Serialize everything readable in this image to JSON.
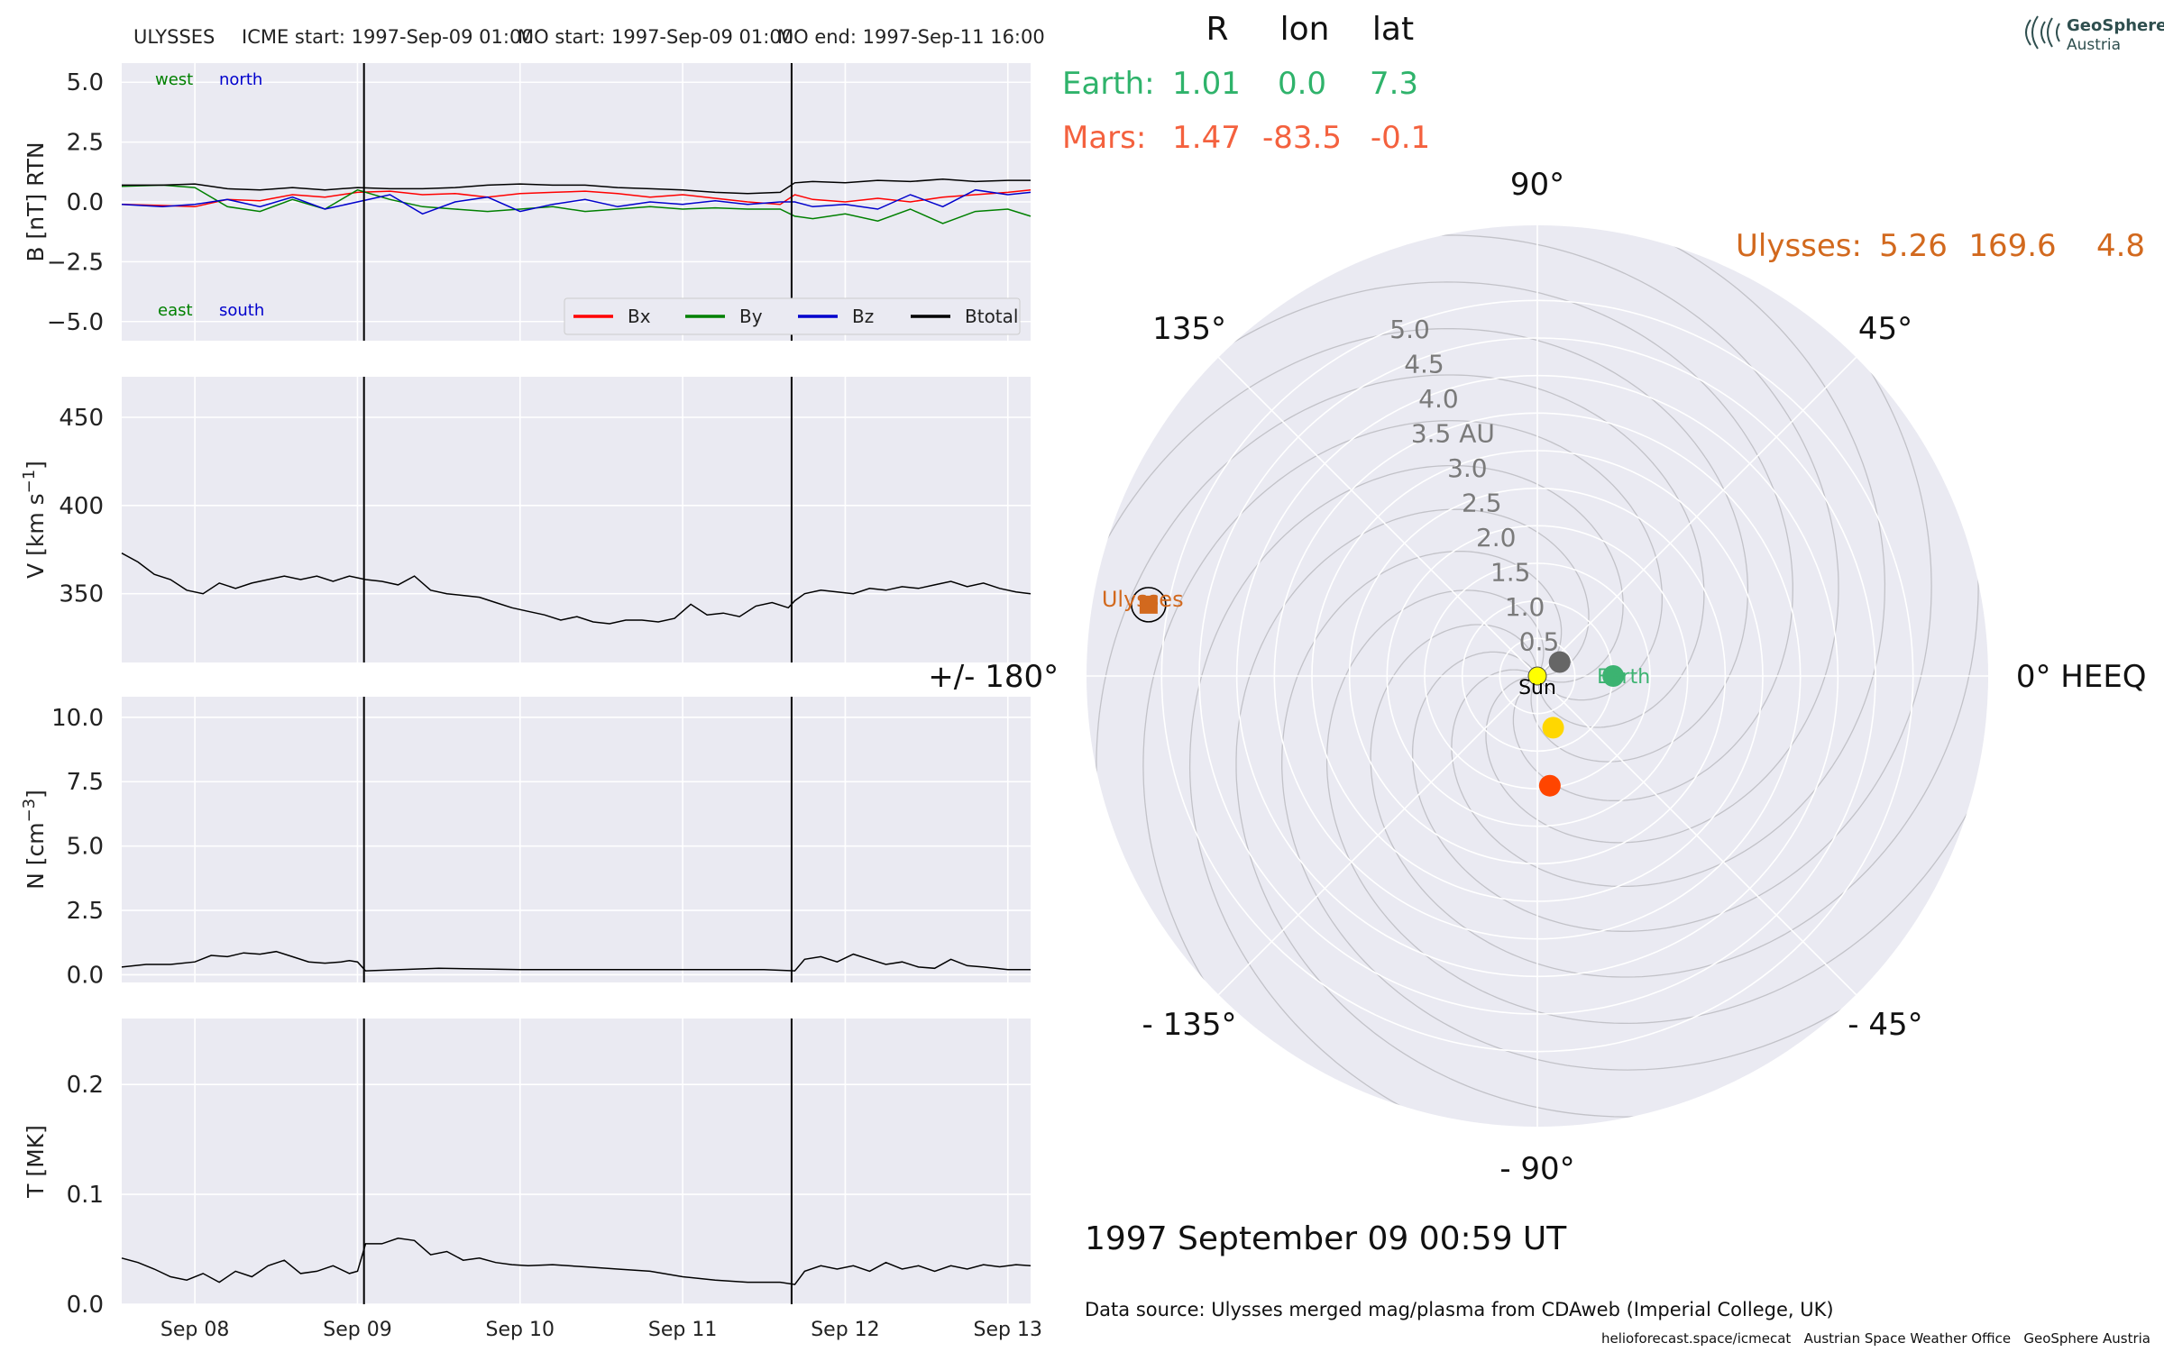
{
  "header": {
    "spacecraft": "ULYSSES",
    "icme_start": "ICME start: 1997-Sep-09 01:00",
    "mo_start": "MO start: 1997-Sep-09 01:00",
    "mo_end": "MO end: 1997-Sep-11 16:00"
  },
  "position_table": {
    "columns": [
      "R",
      "lon",
      "lat"
    ],
    "rows": [
      {
        "name": "Earth:",
        "R": "1.01",
        "lon": "0.0",
        "lat": "7.3",
        "color": "#2fb36b"
      },
      {
        "name": "Mars:",
        "R": "1.47",
        "lon": "-83.5",
        "lat": "-0.1",
        "color": "#f4613e"
      },
      {
        "name": "Ulysses:",
        "R": "5.26",
        "lon": "169.6",
        "lat": "4.8",
        "color": "#d2691e"
      }
    ]
  },
  "logo": {
    "line1": "GeoSphere",
    "line2": "Austria"
  },
  "timestamp": "1997 September 09  00:59 UT",
  "data_source": "Data source: Ulysses merged mag/plasma from CDAweb (Imperial College, UK)",
  "footer": "helioforecast.space/icmecat   Austrian Space Weather Office   GeoSphere Austria",
  "chart_data": [
    {
      "type": "line",
      "panel": "B",
      "ylabel": "B [nT] RTN",
      "ylim": [
        -5.8,
        5.8
      ],
      "yticks": [
        "5.0",
        "2.5",
        "0.0",
        "−2.5",
        "−5.0"
      ],
      "ytick_values": [
        5.0,
        2.5,
        0.0,
        -2.5,
        -5.0
      ],
      "annotations": {
        "west": "west",
        "north": "north",
        "east": "east",
        "south": "south"
      },
      "legend_position": "bottom-right",
      "series": [
        {
          "name": "Bx",
          "color": "#ff0000",
          "x": [
            7.55,
            7.8,
            8.0,
            8.2,
            8.4,
            8.6,
            8.8,
            9.0,
            9.2,
            9.4,
            9.6,
            9.8,
            10.0,
            10.2,
            10.4,
            10.6,
            10.8,
            11.0,
            11.2,
            11.4,
            11.6,
            11.69,
            11.8,
            12.0,
            12.2,
            12.4,
            12.6,
            12.8,
            13.0,
            13.14
          ],
          "y": [
            -0.1,
            -0.15,
            -0.2,
            0.1,
            0.05,
            0.3,
            0.2,
            0.4,
            0.45,
            0.3,
            0.35,
            0.2,
            0.35,
            0.4,
            0.45,
            0.35,
            0.2,
            0.3,
            0.15,
            0.0,
            -0.1,
            0.3,
            0.1,
            0.0,
            0.15,
            0.0,
            0.2,
            0.3,
            0.4,
            0.5
          ]
        },
        {
          "name": "By",
          "color": "#008000",
          "x": [
            7.55,
            7.8,
            8.0,
            8.2,
            8.4,
            8.6,
            8.8,
            9.0,
            9.2,
            9.4,
            9.6,
            9.8,
            10.0,
            10.2,
            10.4,
            10.6,
            10.8,
            11.0,
            11.2,
            11.4,
            11.6,
            11.69,
            11.8,
            12.0,
            12.2,
            12.4,
            12.6,
            12.8,
            13.0,
            13.14
          ],
          "y": [
            0.65,
            0.7,
            0.6,
            -0.2,
            -0.4,
            0.1,
            -0.3,
            0.5,
            0.1,
            -0.2,
            -0.3,
            -0.4,
            -0.3,
            -0.2,
            -0.4,
            -0.3,
            -0.2,
            -0.3,
            -0.25,
            -0.3,
            -0.3,
            -0.6,
            -0.7,
            -0.5,
            -0.8,
            -0.3,
            -0.9,
            -0.4,
            -0.3,
            -0.6
          ]
        },
        {
          "name": "Bz",
          "color": "#0000cc",
          "x": [
            7.55,
            7.8,
            8.0,
            8.2,
            8.4,
            8.6,
            8.8,
            9.0,
            9.2,
            9.4,
            9.6,
            9.8,
            10.0,
            10.2,
            10.4,
            10.6,
            10.8,
            11.0,
            11.2,
            11.4,
            11.6,
            11.69,
            11.8,
            12.0,
            12.2,
            12.4,
            12.6,
            12.8,
            13.0,
            13.14
          ],
          "y": [
            -0.1,
            -0.2,
            -0.1,
            0.1,
            -0.2,
            0.2,
            -0.3,
            0.0,
            0.3,
            -0.5,
            0.0,
            0.2,
            -0.4,
            -0.1,
            0.1,
            -0.2,
            0.0,
            -0.1,
            0.05,
            -0.1,
            0.0,
            0.0,
            -0.2,
            -0.1,
            -0.3,
            0.3,
            -0.2,
            0.5,
            0.3,
            0.4
          ]
        },
        {
          "name": "Btotal",
          "color": "#000000",
          "x": [
            7.55,
            7.8,
            8.0,
            8.2,
            8.4,
            8.6,
            8.8,
            9.0,
            9.2,
            9.4,
            9.6,
            9.8,
            10.0,
            10.2,
            10.4,
            10.6,
            10.8,
            11.0,
            11.2,
            11.4,
            11.6,
            11.69,
            11.8,
            12.0,
            12.2,
            12.4,
            12.6,
            12.8,
            13.0,
            13.14
          ],
          "y": [
            0.7,
            0.7,
            0.75,
            0.55,
            0.5,
            0.6,
            0.5,
            0.6,
            0.55,
            0.55,
            0.6,
            0.7,
            0.75,
            0.7,
            0.7,
            0.6,
            0.55,
            0.5,
            0.4,
            0.35,
            0.4,
            0.8,
            0.85,
            0.8,
            0.9,
            0.85,
            0.95,
            0.85,
            0.9,
            0.9
          ]
        }
      ]
    },
    {
      "type": "line",
      "panel": "V",
      "ylabel": "V [km s",
      "ylabel_sup": "−1",
      "ylabel_end": "]",
      "ylim": [
        311,
        473
      ],
      "yticks": [
        "450",
        "400",
        "350"
      ],
      "ytick_values": [
        450,
        400,
        350
      ],
      "series": [
        {
          "name": "",
          "color": "#000000",
          "x": [
            7.55,
            7.65,
            7.75,
            7.85,
            7.95,
            8.05,
            8.15,
            8.25,
            8.35,
            8.45,
            8.55,
            8.65,
            8.75,
            8.85,
            8.95,
            9.05,
            9.15,
            9.25,
            9.35,
            9.45,
            9.55,
            9.65,
            9.75,
            9.85,
            9.95,
            10.05,
            10.15,
            10.25,
            10.35,
            10.45,
            10.55,
            10.65,
            10.75,
            10.85,
            10.95,
            11.05,
            11.15,
            11.25,
            11.35,
            11.45,
            11.55,
            11.65,
            11.69,
            11.75,
            11.85,
            11.95,
            12.05,
            12.15,
            12.25,
            12.35,
            12.45,
            12.55,
            12.65,
            12.75,
            12.85,
            12.95,
            13.05,
            13.14
          ],
          "y": [
            373,
            368,
            361,
            358,
            352,
            350,
            356,
            353,
            356,
            358,
            360,
            358,
            360,
            357,
            360,
            358,
            357,
            355,
            360,
            352,
            350,
            349,
            348,
            345,
            342,
            340,
            338,
            335,
            337,
            334,
            333,
            335,
            335,
            334,
            336,
            344,
            338,
            339,
            337,
            343,
            345,
            342,
            346,
            350,
            352,
            351,
            350,
            353,
            352,
            354,
            353,
            355,
            357,
            354,
            356,
            353,
            351,
            350
          ]
        }
      ]
    },
    {
      "type": "line",
      "panel": "N",
      "ylabel": "N [cm",
      "ylabel_sup": "−3",
      "ylabel_end": "]",
      "ylim": [
        -0.3,
        10.8
      ],
      "yticks": [
        "10.0",
        "7.5",
        "5.0",
        "2.5",
        "0.0"
      ],
      "ytick_values": [
        10.0,
        7.5,
        5.0,
        2.5,
        0.0
      ],
      "series": [
        {
          "name": "",
          "color": "#000000",
          "x": [
            7.55,
            7.7,
            7.85,
            8.0,
            8.1,
            8.2,
            8.3,
            8.4,
            8.5,
            8.6,
            8.7,
            8.8,
            8.9,
            8.95,
            9.0,
            9.05,
            9.5,
            10.0,
            10.5,
            11.0,
            11.5,
            11.69,
            11.75,
            11.85,
            11.95,
            12.05,
            12.15,
            12.25,
            12.35,
            12.45,
            12.55,
            12.65,
            12.75,
            12.85,
            13.0,
            13.14
          ],
          "y": [
            0.3,
            0.4,
            0.4,
            0.5,
            0.75,
            0.7,
            0.85,
            0.8,
            0.9,
            0.7,
            0.5,
            0.45,
            0.5,
            0.55,
            0.5,
            0.15,
            0.25,
            0.2,
            0.2,
            0.2,
            0.2,
            0.15,
            0.6,
            0.7,
            0.5,
            0.8,
            0.6,
            0.4,
            0.5,
            0.3,
            0.25,
            0.6,
            0.35,
            0.3,
            0.2,
            0.2
          ]
        }
      ]
    },
    {
      "type": "line",
      "panel": "T",
      "ylabel": "T [MK]",
      "ylim": [
        0.0,
        0.26
      ],
      "yticks": [
        "0.2",
        "0.1",
        "0.0"
      ],
      "ytick_values": [
        0.2,
        0.1,
        0.0
      ],
      "xticks": [
        "Sep 08",
        "Sep 09",
        "Sep 10",
        "Sep 11",
        "Sep 12",
        "Sep 13"
      ],
      "xtick_values": [
        8,
        9,
        10,
        11,
        12,
        13
      ],
      "series": [
        {
          "name": "",
          "color": "#000000",
          "x": [
            7.55,
            7.65,
            7.75,
            7.85,
            7.95,
            8.05,
            8.15,
            8.25,
            8.35,
            8.45,
            8.55,
            8.65,
            8.75,
            8.85,
            8.95,
            9.0,
            9.05,
            9.15,
            9.25,
            9.35,
            9.45,
            9.55,
            9.65,
            9.75,
            9.85,
            9.95,
            10.05,
            10.2,
            10.4,
            10.6,
            10.8,
            11.0,
            11.2,
            11.4,
            11.6,
            11.69,
            11.75,
            11.85,
            11.95,
            12.05,
            12.15,
            12.25,
            12.35,
            12.45,
            12.55,
            12.65,
            12.75,
            12.85,
            12.95,
            13.05,
            13.14
          ],
          "y": [
            0.042,
            0.038,
            0.032,
            0.025,
            0.022,
            0.028,
            0.02,
            0.03,
            0.025,
            0.035,
            0.04,
            0.028,
            0.03,
            0.035,
            0.028,
            0.03,
            0.055,
            0.055,
            0.06,
            0.058,
            0.045,
            0.048,
            0.04,
            0.042,
            0.038,
            0.036,
            0.035,
            0.036,
            0.034,
            0.032,
            0.03,
            0.025,
            0.022,
            0.02,
            0.02,
            0.018,
            0.03,
            0.035,
            0.032,
            0.035,
            0.03,
            0.038,
            0.032,
            0.035,
            0.03,
            0.035,
            0.032,
            0.036,
            0.034,
            0.036,
            0.035
          ]
        }
      ]
    },
    {
      "type": "scatter",
      "panel": "polar",
      "rlim": [
        0,
        6.0
      ],
      "r_ticks": [
        "0.5",
        "1.0",
        "1.5",
        "2.0",
        "2.5",
        "3.0",
        "3.5 AU",
        "4.0",
        "4.5",
        "5.0"
      ],
      "r_tick_values": [
        0.5,
        1.0,
        1.5,
        2.0,
        2.5,
        3.0,
        3.5,
        4.0,
        4.5,
        5.0
      ],
      "angle_labels": [
        {
          "deg": 0,
          "text": "0° HEEQ"
        },
        {
          "deg": 45,
          "text": "45°"
        },
        {
          "deg": 90,
          "text": "90°"
        },
        {
          "deg": 135,
          "text": "135°"
        },
        {
          "deg": 180,
          "text": "+/- 180°"
        },
        {
          "deg": 225,
          "text": "- 135°"
        },
        {
          "deg": 270,
          "text": "- 90°"
        },
        {
          "deg": 315,
          "text": "- 45°"
        }
      ],
      "bodies": [
        {
          "name": "Sun",
          "label": "Sun",
          "r": 0.0,
          "lon": 0.0,
          "color": "#ffff00",
          "marker": "circle"
        },
        {
          "name": "Earth",
          "label": "Earth",
          "r": 1.01,
          "lon": 0.0,
          "color": "#3cb371",
          "marker": "circle"
        },
        {
          "name": "Mercury",
          "label": "",
          "r": 0.35,
          "lon": 32,
          "color": "#666666",
          "marker": "circle"
        },
        {
          "name": "Venus",
          "label": "",
          "r": 0.72,
          "lon": -73,
          "color": "#ffd700",
          "marker": "circle"
        },
        {
          "name": "Mars",
          "label": "",
          "r": 1.47,
          "lon": -83.5,
          "color": "#ff4500",
          "marker": "circle"
        },
        {
          "name": "Ulysses",
          "label": "Ulysses",
          "r": 5.26,
          "lon": 169.6,
          "color": "#d2691e",
          "marker": "square"
        }
      ]
    }
  ]
}
